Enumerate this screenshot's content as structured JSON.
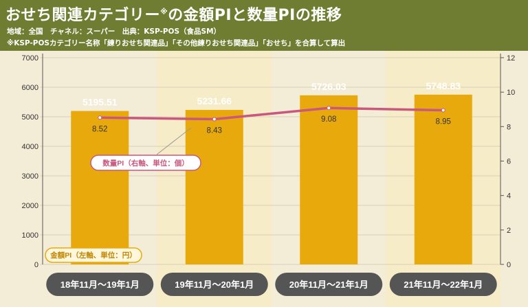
{
  "header": {
    "title_main": "おせち関連カテゴリー",
    "title_mark": "※",
    "title_rest": "の金額PIと数量PIの推移",
    "source_line": "地域：全国　チャネル：スーパー　出典：KSP-POS（食品SM）",
    "note_line": "※KSP-POSカテゴリー名称「練りおせち関連品」「その他練りおせち関連品」「おせち」を合算して算出"
  },
  "colors": {
    "header_bg": "#6e7d31",
    "bar": "#e8a90c",
    "line": "#c9577e",
    "band_alt": "#f7ecc8",
    "pill": "#555555"
  },
  "chart_data": {
    "type": "bar+line",
    "categories": [
      "18年11月～19年1月",
      "19年11月～20年1月",
      "20年11月～21年1月",
      "21年11月～22年1月"
    ],
    "bars": {
      "name": "金額PI（左軸、単位：円）",
      "values": [
        5195.51,
        5231.66,
        5726.03,
        5748.83
      ],
      "labels": [
        "5195.51",
        "5231.66",
        "5726.03",
        "5748.83"
      ]
    },
    "line": {
      "name": "数量PI（右軸、単位：個）",
      "values": [
        8.52,
        8.43,
        9.08,
        8.95
      ],
      "labels": [
        "8.52",
        "8.43",
        "9.08",
        "8.95"
      ]
    },
    "y_left": {
      "min": 0,
      "max": 7000,
      "ticks": [
        "0",
        "1000",
        "2000",
        "3000",
        "4000",
        "5000",
        "6000",
        "7000"
      ]
    },
    "y_right": {
      "min": 0,
      "max": 12,
      "ticks": [
        "0",
        "2",
        "4",
        "6",
        "8",
        "10",
        "12"
      ]
    },
    "grid": true,
    "legend": "inline-callouts"
  }
}
